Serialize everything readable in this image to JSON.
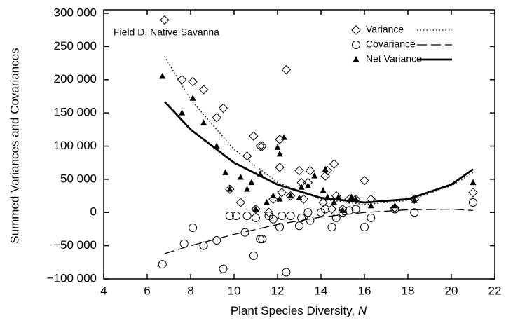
{
  "chart_data": {
    "type": "scatter",
    "annotation": "Field D, Native Savanna",
    "xlabel": "Plant Species Diversity,",
    "xlabel_var": "N",
    "ylabel": "Summed Variances and Covariances",
    "xlim": [
      4,
      22
    ],
    "ylim": [
      -100000,
      300000
    ],
    "xticks": [
      4,
      6,
      8,
      10,
      12,
      14,
      16,
      18,
      20,
      22
    ],
    "yticks": [
      {
        "value": -100000,
        "label": "−100 000"
      },
      {
        "value": -50000,
        "label": "−50 000"
      },
      0,
      {
        "value": 50000,
        "label": "50 000"
      },
      {
        "value": 100000,
        "label": "100 000"
      },
      {
        "value": 150000,
        "label": "150 000"
      },
      {
        "value": 200000,
        "label": "200 000"
      },
      {
        "value": 250000,
        "label": "250 000"
      },
      {
        "value": 300000,
        "label": "300 000"
      }
    ],
    "grid": false,
    "legend": "upper right",
    "series": [
      {
        "name": "Variance",
        "color": "#000000",
        "marker": "diamond",
        "line_style": "dotted",
        "x": [
          6.8,
          7.6,
          8.1,
          8.6,
          9.2,
          9.5,
          9.8,
          10.3,
          10.6,
          10.9,
          11.0,
          11.2,
          11.3,
          11.6,
          11.8,
          12.1,
          12.1,
          12.2,
          12.4,
          12.6,
          13.0,
          13.1,
          13.2,
          13.4,
          13.5,
          14.1,
          14.2,
          14.3,
          14.5,
          14.6,
          14.7,
          15.0,
          15.3,
          15.6,
          16.0,
          16.3,
          17.4,
          18.3,
          21.0
        ],
        "values": [
          290000,
          200000,
          197000,
          185000,
          143000,
          157000,
          35000,
          15000,
          85000,
          115000,
          5000,
          100000,
          100000,
          0,
          20000,
          68000,
          110000,
          30000,
          215000,
          25000,
          63000,
          45000,
          20000,
          45000,
          63000,
          15000,
          55000,
          63000,
          5000,
          73000,
          25000,
          5000,
          20000,
          20000,
          48000,
          20000,
          7000,
          20000,
          30000
        ],
        "fit": {
          "x": [
            6.8,
            8,
            10,
            12,
            14,
            16,
            18,
            20,
            21
          ],
          "values": [
            235000,
            170000,
            95000,
            45000,
            20000,
            12000,
            18000,
            40000,
            60000
          ]
        }
      },
      {
        "name": "Covariance",
        "color": "#000000",
        "marker": "circle",
        "line_style": "dashed",
        "x": [
          6.7,
          7.7,
          8.1,
          8.6,
          9.2,
          9.5,
          9.8,
          10.1,
          10.5,
          10.6,
          10.9,
          11.0,
          11.2,
          11.3,
          11.6,
          11.8,
          12.2,
          12.1,
          12.4,
          12.6,
          13.0,
          13.1,
          13.4,
          13.5,
          14.0,
          14.2,
          14.5,
          14.7,
          15.0,
          15.3,
          15.6,
          16.0,
          16.3,
          17.4,
          18.3,
          21.0
        ],
        "values": [
          -78000,
          -47000,
          -23000,
          -50000,
          -42000,
          -85000,
          -5000,
          -5000,
          -30000,
          -5000,
          -65000,
          -8000,
          -40000,
          -40000,
          -5000,
          -10000,
          -5000,
          -22000,
          -90000,
          -5000,
          -20000,
          -8000,
          0,
          -12000,
          0,
          5000,
          -22000,
          -8000,
          0,
          3000,
          5000,
          -22000,
          -8000,
          5000,
          0,
          15000
        ],
        "fit": {
          "x": [
            6.8,
            8,
            10,
            12,
            14,
            16,
            18,
            20,
            21
          ],
          "values": [
            -62000,
            -50000,
            -33000,
            -18000,
            -7000,
            0,
            4000,
            5000,
            3000
          ]
        }
      },
      {
        "name": "Net Variance",
        "color": "#000000",
        "marker": "triangle",
        "line_style": "solid",
        "x": [
          6.7,
          7.6,
          8.1,
          8.6,
          9.2,
          9.6,
          9.8,
          10.3,
          10.6,
          10.8,
          11.0,
          11.2,
          11.5,
          11.8,
          12.0,
          12.1,
          12.1,
          12.3,
          12.6,
          13.0,
          13.1,
          13.4,
          13.7,
          14.1,
          14.2,
          14.3,
          14.6,
          14.8,
          15.0,
          15.4,
          15.6,
          16.3,
          17.4,
          18.3,
          21.0
        ],
        "values": [
          205000,
          150000,
          172000,
          135000,
          100000,
          60000,
          35000,
          53000,
          35000,
          45000,
          5000,
          58000,
          15000,
          25000,
          98000,
          20000,
          88000,
          113000,
          25000,
          22000,
          38000,
          40000,
          55000,
          33000,
          65000,
          23000,
          15000,
          23000,
          3000,
          23000,
          20000,
          10000,
          10000,
          18000,
          45000
        ],
        "fit": {
          "x": [
            6.8,
            8,
            10,
            12,
            14,
            16,
            18,
            20,
            21
          ],
          "values": [
            167000,
            125000,
            75000,
            42000,
            22000,
            15000,
            20000,
            42000,
            65000
          ]
        }
      }
    ]
  }
}
